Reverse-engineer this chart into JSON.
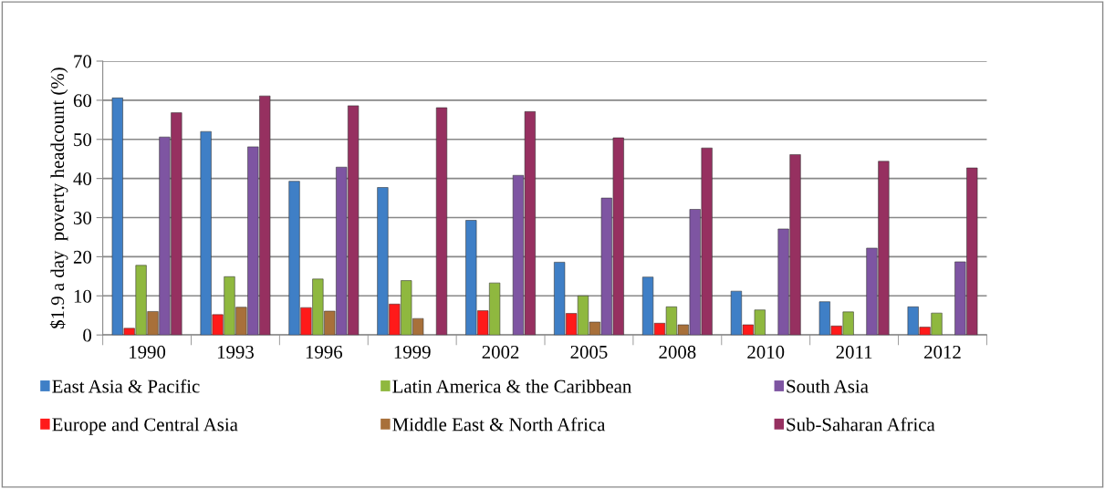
{
  "chart_data": {
    "type": "bar",
    "ylabel": "$1.9 a day  poverty headcount (%)",
    "categories": [
      "1990",
      "1993",
      "1996",
      "1999",
      "2002",
      "2005",
      "2008",
      "2010",
      "2011",
      "2012"
    ],
    "series": [
      {
        "name": "East Asia & Pacific",
        "color": "#3f7fc6",
        "values": [
          60.6,
          52.0,
          39.3,
          37.7,
          29.3,
          18.6,
          14.8,
          11.2,
          8.5,
          7.2
        ]
      },
      {
        "name": "Europe and Central Asia",
        "color": "#ff1a1a",
        "values": [
          1.7,
          5.2,
          7.0,
          7.9,
          6.2,
          5.5,
          3.0,
          2.6,
          2.3,
          2.0
        ]
      },
      {
        "name": "Latin America & the Caribbean",
        "color": "#8fb83f",
        "values": [
          17.8,
          14.9,
          14.3,
          13.9,
          13.3,
          10.0,
          7.2,
          6.4,
          5.9,
          5.6
        ]
      },
      {
        "name": "Middle East & North Africa",
        "color": "#a8703a",
        "values": [
          6.0,
          7.1,
          6.1,
          4.2,
          null,
          3.3,
          2.6,
          null,
          null,
          null
        ]
      },
      {
        "name": "South Asia",
        "color": "#7e55a2",
        "values": [
          50.6,
          48.1,
          42.9,
          null,
          40.8,
          35.0,
          32.1,
          27.1,
          22.2,
          18.7
        ]
      },
      {
        "name": "Sub-Saharan Africa",
        "color": "#963060",
        "values": [
          56.8,
          61.1,
          58.6,
          58.1,
          57.1,
          50.4,
          47.8,
          46.1,
          44.4,
          42.7
        ]
      }
    ],
    "ylim": [
      0,
      70
    ],
    "yticks": [
      0,
      10,
      20,
      30,
      40,
      50,
      60,
      70
    ],
    "grid": "y",
    "legend": "bottom"
  }
}
